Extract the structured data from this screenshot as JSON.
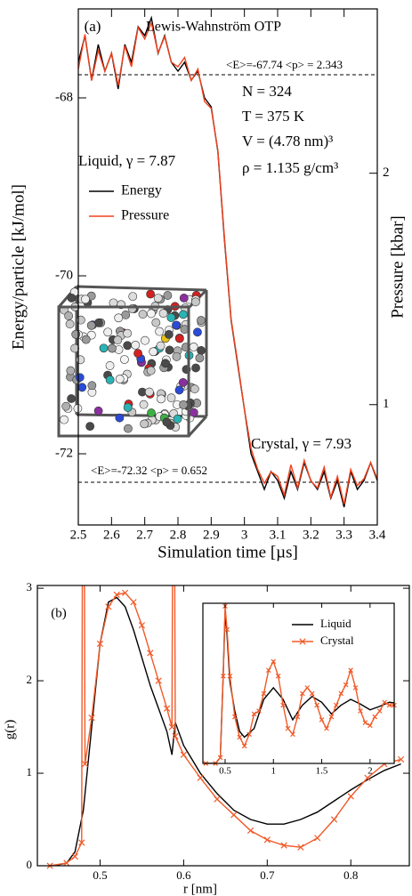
{
  "chart_data": [
    {
      "type": "line",
      "panel_label": "(a)",
      "title": "Lewis-Wahnström OTP",
      "xlabel": "Simulation time [µs]",
      "ylabel": "Energy/particle [kJ/mol]",
      "y2label": "Pressure [kbar]",
      "annotations": [
        "<E>=-67.74  <p> = 2.343",
        "N = 324",
        "T = 375 K",
        "V = (4.78 nm)³",
        "ρ = 1.135 g/cm³",
        "Liquid, γ = 7.87",
        "Crystal, γ = 7.93",
        "<E>=-72.32  <p> = 0.652"
      ],
      "reference_lines": [
        -67.74,
        -72.32
      ],
      "x": [
        2.5,
        2.52,
        2.54,
        2.56,
        2.58,
        2.6,
        2.62,
        2.64,
        2.66,
        2.68,
        2.7,
        2.72,
        2.74,
        2.76,
        2.78,
        2.8,
        2.82,
        2.84,
        2.86,
        2.88,
        2.9,
        2.92,
        2.94,
        2.96,
        2.98,
        3.0,
        3.02,
        3.04,
        3.06,
        3.08,
        3.1,
        3.12,
        3.14,
        3.16,
        3.18,
        3.2,
        3.22,
        3.24,
        3.26,
        3.28,
        3.3,
        3.32,
        3.34,
        3.36,
        3.38,
        3.4
      ],
      "series": [
        {
          "name": "Energy",
          "color": "#000000",
          "values": [
            -67.6,
            -67.3,
            -67.8,
            -67.4,
            -67.7,
            -67.5,
            -67.9,
            -67.4,
            -67.6,
            -67.2,
            -67.3,
            -67.1,
            -67.5,
            -67.3,
            -67.6,
            -67.7,
            -67.6,
            -67.8,
            -67.7,
            -68.0,
            -68.1,
            -68.6,
            -69.6,
            -70.5,
            -71.0,
            -71.5,
            -72.0,
            -72.2,
            -72.4,
            -72.2,
            -72.3,
            -72.5,
            -72.2,
            -72.4,
            -72.1,
            -72.3,
            -72.4,
            -72.2,
            -72.5,
            -72.3,
            -72.6,
            -72.2,
            -72.4,
            -72.3,
            -72.1,
            -72.3
          ]
        },
        {
          "name": "Pressure",
          "color": "#f2401c",
          "axis": "y2",
          "values": [
            2.45,
            2.6,
            2.4,
            2.53,
            2.44,
            2.52,
            2.38,
            2.55,
            2.46,
            2.63,
            2.58,
            2.65,
            2.52,
            2.59,
            2.48,
            2.46,
            2.5,
            2.4,
            2.45,
            2.31,
            2.28,
            2.1,
            1.72,
            1.37,
            1.18,
            0.98,
            0.81,
            0.72,
            0.66,
            0.71,
            0.69,
            0.61,
            0.74,
            0.64,
            0.76,
            0.67,
            0.64,
            0.73,
            0.6,
            0.69,
            0.57,
            0.72,
            0.65,
            0.68,
            0.75,
            0.68
          ]
        }
      ],
      "xlim": [
        2.5,
        3.4
      ],
      "xticks": [
        2.5,
        2.6,
        2.7,
        2.8,
        2.9,
        3,
        3.1,
        3.2,
        3.3,
        3.4
      ],
      "ylim": [
        -72.8,
        -67.0
      ],
      "yticks": [
        -72,
        -70,
        -68
      ],
      "y2lim": [
        0.48,
        2.71
      ],
      "y2ticks": [
        1,
        2
      ]
    },
    {
      "type": "line",
      "panel_label": "(b)",
      "xlabel": "r [nm]",
      "ylabel": "g(r)",
      "series": [
        {
          "name": "Liquid",
          "color": "#000000",
          "x": [
            0.44,
            0.45,
            0.46,
            0.47,
            0.48,
            0.49,
            0.5,
            0.51,
            0.52,
            0.53,
            0.54,
            0.55,
            0.56,
            0.57,
            0.58,
            0.586,
            0.59,
            0.6,
            0.62,
            0.64,
            0.66,
            0.68,
            0.7,
            0.72,
            0.74,
            0.76,
            0.78,
            0.8,
            0.82,
            0.84,
            0.86
          ],
          "values": [
            0,
            0.01,
            0.03,
            0.15,
            0.6,
            1.5,
            2.4,
            2.85,
            2.9,
            2.8,
            2.55,
            2.25,
            1.95,
            1.7,
            1.45,
            1.2,
            1.55,
            1.3,
            1.0,
            0.78,
            0.6,
            0.5,
            0.45,
            0.45,
            0.5,
            0.58,
            0.7,
            0.82,
            0.93,
            1.03,
            1.1
          ]
        },
        {
          "name": "Crystal",
          "color": "#f05a28",
          "marker": "x",
          "x": [
            0.44,
            0.46,
            0.47,
            0.478,
            0.479,
            0.481,
            0.482,
            0.49,
            0.5,
            0.51,
            0.52,
            0.53,
            0.54,
            0.55,
            0.56,
            0.57,
            0.58,
            0.586,
            0.587,
            0.589,
            0.59,
            0.6,
            0.62,
            0.64,
            0.66,
            0.68,
            0.7,
            0.72,
            0.74,
            0.76,
            0.78,
            0.8,
            0.82,
            0.84,
            0.86
          ],
          "values": [
            0,
            0.03,
            0.1,
            0.25,
            4,
            4,
            1.1,
            1.6,
            2.4,
            2.8,
            2.93,
            2.95,
            2.85,
            2.6,
            2.3,
            2.0,
            1.7,
            1.5,
            4,
            4,
            1.4,
            1.2,
            0.95,
            0.72,
            0.55,
            0.38,
            0.28,
            0.22,
            0.2,
            0.3,
            0.5,
            0.75,
            0.95,
            1.1,
            1.15
          ]
        }
      ],
      "xlim": [
        0.425,
        0.87
      ],
      "xticks": [
        0.5,
        0.6,
        0.7,
        0.8
      ],
      "ylim": [
        0,
        3.03
      ],
      "yticks": [
        0,
        1,
        2,
        3
      ]
    },
    {
      "type": "line",
      "series": [
        {
          "name": "Liquid",
          "color": "#000000",
          "x": [
            0.3,
            0.4,
            0.45,
            0.48,
            0.5,
            0.52,
            0.55,
            0.6,
            0.65,
            0.7,
            0.8,
            0.9,
            1.0,
            1.1,
            1.2,
            1.3,
            1.4,
            1.5,
            1.6,
            1.7,
            1.8,
            1.9,
            2.0,
            2.1,
            2.2,
            2.25
          ],
          "values": [
            0,
            0,
            0.1,
            1.5,
            2.6,
            2.2,
            1.4,
            0.9,
            0.55,
            0.45,
            0.6,
            1.1,
            1.3,
            1.1,
            0.75,
            1.0,
            1.15,
            1.05,
            0.85,
            1.0,
            1.1,
            1.02,
            0.92,
            0.98,
            1.05,
            1.04
          ]
        },
        {
          "name": "Crystal",
          "color": "#f05a28",
          "marker": "x",
          "x": [
            0.3,
            0.4,
            0.45,
            0.48,
            0.5,
            0.52,
            0.55,
            0.6,
            0.65,
            0.7,
            0.75,
            0.8,
            0.85,
            0.9,
            0.95,
            1.0,
            1.05,
            1.1,
            1.15,
            1.2,
            1.25,
            1.3,
            1.35,
            1.4,
            1.45,
            1.5,
            1.55,
            1.6,
            1.65,
            1.7,
            1.75,
            1.8,
            1.85,
            1.9,
            1.95,
            2.0,
            2.05,
            2.1,
            2.15,
            2.2,
            2.25
          ],
          "values": [
            0,
            0,
            0.1,
            1.5,
            2.7,
            2.3,
            1.5,
            0.8,
            0.45,
            0.3,
            0.5,
            0.85,
            0.9,
            1.2,
            1.6,
            1.75,
            1.5,
            1.0,
            0.6,
            0.5,
            0.8,
            1.2,
            1.3,
            1.2,
            1.0,
            0.75,
            0.6,
            0.8,
            1.0,
            1.2,
            1.35,
            1.6,
            1.3,
            0.9,
            0.7,
            0.65,
            0.8,
            0.9,
            1.05,
            1.0,
            1.0
          ]
        }
      ],
      "xlim": [
        0.27,
        2.25
      ],
      "xticks": [
        0.5,
        1,
        1.5,
        2
      ],
      "ylim": [
        0,
        2.75
      ]
    }
  ]
}
